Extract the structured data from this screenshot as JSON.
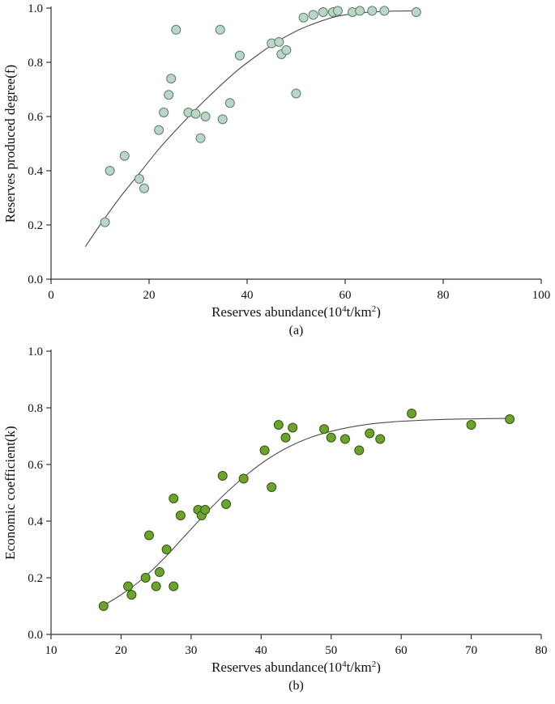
{
  "page": {
    "background": "#ffffff"
  },
  "chart_data": [
    {
      "type": "scatter",
      "caption": "(a)",
      "ylabel": "Reserves produced degree(f)",
      "xlabel_parts": [
        {
          "t": "Reserves abundance(10"
        },
        {
          "t": "4",
          "sup": true
        },
        {
          "t": "t/km"
        },
        {
          "t": "2",
          "sup": true
        },
        {
          "t": ")"
        }
      ],
      "xlim": [
        0,
        100
      ],
      "ylim": [
        0,
        1.0
      ],
      "xticks": [
        0,
        20,
        40,
        60,
        80,
        100
      ],
      "xtick_labels": [
        "0",
        "20",
        "40",
        "60",
        "80",
        "100"
      ],
      "yticks": [
        0,
        0.2,
        0.4,
        0.6,
        0.8,
        1.0
      ],
      "ytick_labels": [
        "0.0",
        "0.2",
        "0.4",
        "0.6",
        "0.8",
        "1.0"
      ],
      "legend": "none",
      "grid": false,
      "point_style": {
        "fill": "#b9d6c7",
        "stroke": "#5b7d6b",
        "radius": 5.5
      },
      "curve_color": "#4d4d4d",
      "axis_color": "#333333",
      "points": [
        [
          11,
          0.21
        ],
        [
          12,
          0.4
        ],
        [
          15,
          0.455
        ],
        [
          18,
          0.37
        ],
        [
          19,
          0.335
        ],
        [
          22,
          0.55
        ],
        [
          23,
          0.615
        ],
        [
          24,
          0.68
        ],
        [
          24.5,
          0.74
        ],
        [
          25.5,
          0.92
        ],
        [
          28,
          0.615
        ],
        [
          29.5,
          0.61
        ],
        [
          30.5,
          0.52
        ],
        [
          31.5,
          0.6
        ],
        [
          34.5,
          0.92
        ],
        [
          35,
          0.59
        ],
        [
          36.5,
          0.65
        ],
        [
          38.5,
          0.825
        ],
        [
          45,
          0.87
        ],
        [
          46.5,
          0.875
        ],
        [
          47,
          0.83
        ],
        [
          48,
          0.845
        ],
        [
          50,
          0.685
        ],
        [
          51.5,
          0.965
        ],
        [
          53.5,
          0.975
        ],
        [
          55.5,
          0.985
        ],
        [
          57.5,
          0.985
        ],
        [
          58.5,
          0.99
        ],
        [
          61.5,
          0.985
        ],
        [
          63,
          0.99
        ],
        [
          65.5,
          0.99
        ],
        [
          68,
          0.99
        ],
        [
          74.5,
          0.985
        ]
      ],
      "curve": [
        [
          7,
          0.12
        ],
        [
          10,
          0.2
        ],
        [
          14,
          0.3
        ],
        [
          18,
          0.39
        ],
        [
          22,
          0.48
        ],
        [
          26,
          0.56
        ],
        [
          30,
          0.635
        ],
        [
          34,
          0.705
        ],
        [
          38,
          0.77
        ],
        [
          42,
          0.825
        ],
        [
          46,
          0.875
        ],
        [
          50,
          0.915
        ],
        [
          54,
          0.945
        ],
        [
          58,
          0.968
        ],
        [
          62,
          0.98
        ],
        [
          66,
          0.986
        ],
        [
          70,
          0.989
        ],
        [
          74,
          0.99
        ]
      ]
    },
    {
      "type": "scatter",
      "caption": "(b)",
      "ylabel": "Economic coefficient(k)",
      "xlabel_parts": [
        {
          "t": "Reserves abundance(10"
        },
        {
          "t": "4",
          "sup": true
        },
        {
          "t": "t/km"
        },
        {
          "t": "2",
          "sup": true
        },
        {
          "t": ")"
        }
      ],
      "xlim": [
        10,
        80
      ],
      "ylim": [
        0,
        1.0
      ],
      "xticks": [
        10,
        20,
        30,
        40,
        50,
        60,
        70,
        80
      ],
      "xtick_labels": [
        "10",
        "20",
        "30",
        "40",
        "50",
        "60",
        "70",
        "80"
      ],
      "yticks": [
        0,
        0.2,
        0.4,
        0.6,
        0.8,
        1.0
      ],
      "ytick_labels": [
        "0.0",
        "0.2",
        "0.4",
        "0.6",
        "0.8",
        "1.0"
      ],
      "legend": "none",
      "grid": false,
      "point_style": {
        "fill": "#6da32c",
        "stroke": "#2f5510",
        "radius": 5.5
      },
      "curve_color": "#4d4d4d",
      "axis_color": "#333333",
      "points": [
        [
          17.5,
          0.1
        ],
        [
          21,
          0.17
        ],
        [
          21.5,
          0.14
        ],
        [
          23.5,
          0.2
        ],
        [
          24,
          0.35
        ],
        [
          25,
          0.17
        ],
        [
          25.5,
          0.22
        ],
        [
          26.5,
          0.3
        ],
        [
          27.5,
          0.48
        ],
        [
          27.5,
          0.17
        ],
        [
          28.5,
          0.42
        ],
        [
          31,
          0.44
        ],
        [
          31.5,
          0.42
        ],
        [
          32,
          0.44
        ],
        [
          34.5,
          0.56
        ],
        [
          35,
          0.46
        ],
        [
          37.5,
          0.55
        ],
        [
          40.5,
          0.65
        ],
        [
          41.5,
          0.52
        ],
        [
          42.5,
          0.74
        ],
        [
          43.5,
          0.695
        ],
        [
          44.5,
          0.73
        ],
        [
          49,
          0.725
        ],
        [
          50,
          0.695
        ],
        [
          52,
          0.69
        ],
        [
          54,
          0.65
        ],
        [
          55.5,
          0.71
        ],
        [
          57,
          0.69
        ],
        [
          61.5,
          0.78
        ],
        [
          70,
          0.74
        ],
        [
          75.5,
          0.76
        ]
      ],
      "curve": [
        [
          17,
          0.095
        ],
        [
          20,
          0.14
        ],
        [
          23,
          0.195
        ],
        [
          26,
          0.265
        ],
        [
          29,
          0.345
        ],
        [
          32,
          0.425
        ],
        [
          35,
          0.5
        ],
        [
          38,
          0.565
        ],
        [
          41,
          0.62
        ],
        [
          44,
          0.663
        ],
        [
          47,
          0.695
        ],
        [
          50,
          0.717
        ],
        [
          53,
          0.733
        ],
        [
          56,
          0.744
        ],
        [
          59,
          0.751
        ],
        [
          62,
          0.755
        ],
        [
          66,
          0.759
        ],
        [
          70,
          0.761
        ],
        [
          76,
          0.763
        ]
      ]
    }
  ]
}
